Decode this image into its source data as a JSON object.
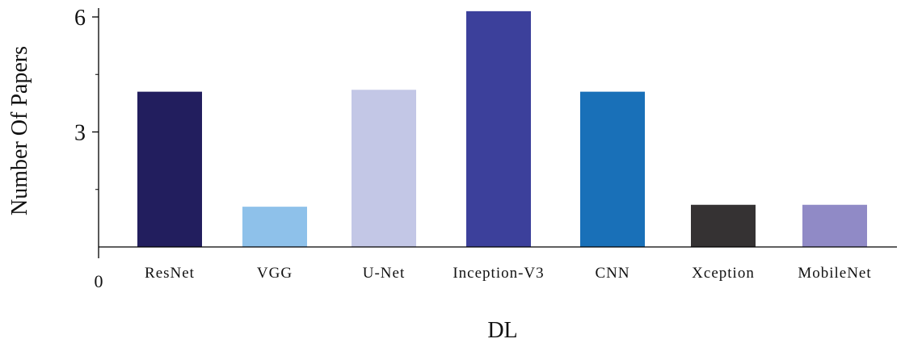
{
  "chart_data": {
    "type": "bar",
    "title": "",
    "xlabel": "DL",
    "ylabel": "Number Of Papers",
    "categories": [
      "ResNet",
      "VGG",
      "U-Net",
      "Inception-V3",
      "CNN",
      "Xception",
      "MobileNet"
    ],
    "values": [
      4.05,
      1.05,
      4.1,
      6.15,
      4.05,
      1.1,
      1.1
    ],
    "bar_colors": [
      "#221e5e",
      "#8ec1ea",
      "#c3c7e6",
      "#3c409b",
      "#1970b8",
      "#353233",
      "#908ac6"
    ],
    "ylim": [
      0,
      6.3
    ],
    "y_ticks": [
      {
        "value": 0,
        "label": "0"
      },
      {
        "value": 3,
        "label": "3"
      },
      {
        "value": 6,
        "label": "6"
      }
    ],
    "minor_tick_values": [
      1.5,
      4.5
    ],
    "grid": false,
    "legend": "none",
    "axis_color": "#000000"
  }
}
